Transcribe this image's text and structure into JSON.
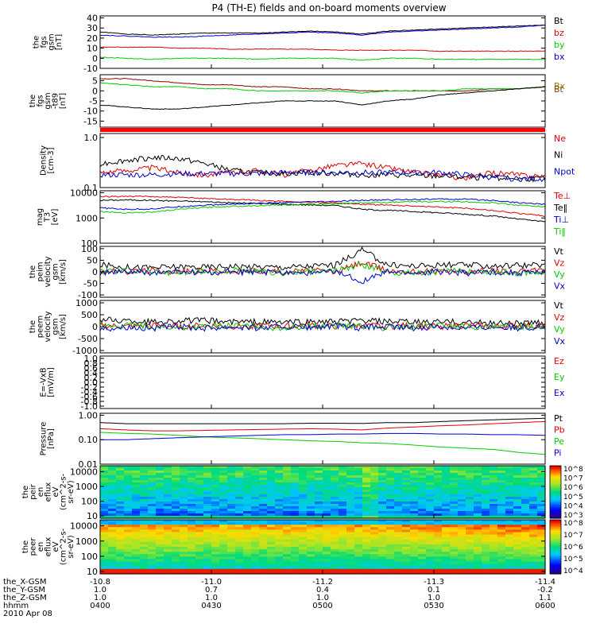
{
  "title": "P4 (TH-E) fields and on-board moments overview",
  "colors": {
    "black": "#000000",
    "red": "#e00000",
    "green": "#00cc00",
    "blue": "#0000cc",
    "darkred": "#8b0000",
    "olive": "#808000"
  },
  "chart_data": [
    {
      "type": "line",
      "id": "fgs_gsm",
      "ylabel": [
        "the",
        "fgs",
        "gsm",
        "[nT]"
      ],
      "yticks": [
        "40",
        "30",
        "20",
        "10",
        "0",
        "-10"
      ],
      "ylim": [
        -10,
        42
      ],
      "legend": [
        "Bt",
        "bz",
        "by",
        "bx"
      ],
      "series": [
        {
          "name": "Bt",
          "color": "#000000",
          "values": [
            26,
            24,
            23,
            24,
            25,
            25,
            25,
            26,
            27,
            26,
            24,
            27,
            28,
            29,
            30,
            31,
            32,
            33
          ]
        },
        {
          "name": "bz",
          "color": "#e00000",
          "values": [
            11,
            11,
            11,
            10,
            10,
            9,
            9,
            9,
            9,
            8,
            8,
            8,
            8,
            7,
            7,
            7,
            7,
            7
          ]
        },
        {
          "name": "by",
          "color": "#00cc00",
          "values": [
            1,
            0,
            -1,
            0,
            0,
            0,
            -1,
            0,
            0,
            0,
            -2,
            0,
            0,
            -1,
            -1,
            -1,
            -1,
            -1
          ]
        },
        {
          "name": "bx",
          "color": "#0000cc",
          "values": [
            23,
            22,
            21,
            21,
            22,
            23,
            24,
            25,
            26,
            25,
            23,
            26,
            27,
            28,
            29,
            30,
            31,
            33
          ]
        }
      ]
    },
    {
      "type": "line",
      "id": "fgs_gse",
      "ylabel": [
        "the",
        "fgs",
        "gsm",
        "-t89",
        "[nT]"
      ],
      "yticks": [
        "5",
        "0",
        "-5",
        "-10",
        "-15"
      ],
      "ylim": [
        -18,
        8
      ],
      "legend": [
        "Bx",
        "Bt"
      ],
      "series": [
        {
          "name": "Bx",
          "color": "#8b0000",
          "values": [
            6,
            6,
            5,
            4,
            3,
            3,
            2,
            2,
            1,
            1,
            0,
            0,
            0,
            0,
            0,
            1,
            1,
            2
          ]
        },
        {
          "name": "",
          "color": "#00cc00",
          "values": [
            4,
            3,
            2,
            2,
            1,
            1,
            0,
            0,
            0,
            0,
            -1,
            0,
            0,
            0,
            1,
            1,
            1,
            2
          ]
        },
        {
          "name": "Bt",
          "color": "#000000",
          "values": [
            -7,
            -8,
            -9,
            -9,
            -8,
            -7,
            -6,
            -5,
            -5,
            -5,
            -7,
            -5,
            -4,
            -2,
            -1,
            0,
            1,
            2
          ]
        }
      ]
    },
    {
      "type": "line",
      "id": "density",
      "scale": "log",
      "ylabel": [
        "Density",
        "[cm-3]"
      ],
      "yticks": [
        "1.0",
        "0.1"
      ],
      "ylim": [
        0.1,
        1.2
      ],
      "legend": [
        "Ne",
        "Ni",
        "Npot"
      ],
      "series": [
        {
          "name": "Ne",
          "color": "#e00000",
          "values": [
            0.2,
            0.22,
            0.25,
            0.2,
            0.18,
            0.2,
            0.22,
            0.18,
            0.22,
            0.28,
            0.3,
            0.25,
            0.2,
            0.18,
            0.15,
            0.2,
            0.18,
            0.17
          ]
        },
        {
          "name": "Ni",
          "color": "#000000",
          "values": [
            0.3,
            0.35,
            0.4,
            0.38,
            0.3,
            0.22,
            0.2,
            0.19,
            0.2,
            0.19,
            0.18,
            0.18,
            0.17,
            0.17,
            0.16,
            0.16,
            0.15,
            0.15
          ]
        },
        {
          "name": "Npot",
          "color": "#0000cc",
          "values": [
            0.18,
            0.18,
            0.18,
            0.19,
            0.19,
            0.19,
            0.19,
            0.2,
            0.2,
            0.2,
            0.2,
            0.2,
            0.2,
            0.2,
            0.18,
            0.16,
            0.15,
            0.15
          ]
        }
      ]
    },
    {
      "type": "line",
      "id": "temperature",
      "scale": "log",
      "ylabel": [
        "mag",
        "T3",
        "[eV]"
      ],
      "yticks": [
        "10000",
        "1000",
        "100"
      ],
      "ylim": [
        100,
        12000
      ],
      "legend": [
        "Te⊥",
        "Te‖",
        "Ti⊥",
        "Ti‖"
      ],
      "series": [
        {
          "name": "Te⊥",
          "color": "#e00000",
          "values": [
            7000,
            7200,
            7000,
            6500,
            6000,
            5500,
            5000,
            4500,
            4200,
            4000,
            3500,
            3200,
            3000,
            2700,
            2400,
            2000,
            1500,
            1200
          ]
        },
        {
          "name": "Te‖",
          "color": "#000000",
          "values": [
            5000,
            5200,
            5000,
            4700,
            4400,
            4000,
            3800,
            3500,
            3300,
            3100,
            2200,
            2000,
            1800,
            1600,
            1400,
            1200,
            900,
            700
          ]
        },
        {
          "name": "Ti⊥",
          "color": "#0000cc",
          "values": [
            2500,
            2200,
            2300,
            2800,
            3200,
            3500,
            3800,
            4000,
            4300,
            4500,
            5000,
            5200,
            5500,
            5600,
            5500,
            5000,
            4000,
            3500
          ]
        },
        {
          "name": "Ti‖",
          "color": "#00cc00",
          "values": [
            1800,
            1600,
            1700,
            2200,
            2600,
            2900,
            3100,
            3300,
            3500,
            3700,
            4000,
            4200,
            4400,
            4500,
            4400,
            4000,
            3200,
            2800
          ]
        }
      ]
    },
    {
      "type": "line",
      "id": "peim_velocity",
      "ylabel": [
        "the",
        "peim",
        "velocity",
        "gsm",
        "[km/s]"
      ],
      "yticks": [
        "100",
        "50",
        "0",
        "-50",
        "-100"
      ],
      "ylim": [
        -110,
        110
      ],
      "legend": [
        "Vt",
        "Vz",
        "Vy",
        "Vx"
      ],
      "series": [
        {
          "name": "Vt",
          "color": "#000000",
          "values": [
            30,
            20,
            18,
            22,
            20,
            25,
            22,
            20,
            25,
            30,
            95,
            30,
            25,
            30,
            28,
            25,
            30,
            28
          ]
        },
        {
          "name": "Vz",
          "color": "#e00000",
          "values": [
            5,
            0,
            5,
            0,
            5,
            0,
            5,
            0,
            5,
            0,
            40,
            5,
            0,
            5,
            0,
            5,
            0,
            5
          ]
        },
        {
          "name": "Vy",
          "color": "#00cc00",
          "values": [
            0,
            5,
            0,
            -5,
            0,
            5,
            0,
            -5,
            0,
            5,
            30,
            0,
            -5,
            0,
            5,
            0,
            -5,
            0
          ]
        },
        {
          "name": "Vx",
          "color": "#0000cc",
          "values": [
            -5,
            0,
            -5,
            0,
            -5,
            0,
            -5,
            0,
            -5,
            0,
            -40,
            0,
            -5,
            0,
            -5,
            0,
            -5,
            0
          ]
        }
      ]
    },
    {
      "type": "line",
      "id": "peem_velocity",
      "ylabel": [
        "the",
        "peem",
        "velocity",
        "gsm",
        "[km/s]"
      ],
      "yticks": [
        "1000",
        "500",
        "0",
        "-500",
        "-1000"
      ],
      "ylim": [
        -1100,
        1100
      ],
      "legend": [
        "Vt",
        "Vz",
        "Vy",
        "Vx"
      ],
      "series": [
        {
          "name": "Vt",
          "color": "#000000",
          "values": [
            300,
            250,
            200,
            250,
            250,
            200,
            200,
            180,
            200,
            200,
            250,
            200,
            180,
            200,
            180,
            150,
            150,
            150
          ]
        },
        {
          "name": "Vz",
          "color": "#e00000",
          "values": [
            50,
            0,
            50,
            0,
            50,
            0,
            50,
            0,
            50,
            0,
            50,
            0,
            50,
            0,
            50,
            0,
            50,
            0
          ]
        },
        {
          "name": "Vy",
          "color": "#00cc00",
          "values": [
            0,
            50,
            0,
            -50,
            0,
            50,
            0,
            -50,
            0,
            50,
            0,
            -50,
            0,
            50,
            0,
            -50,
            0,
            50
          ]
        },
        {
          "name": "Vx",
          "color": "#0000cc",
          "values": [
            -100,
            0,
            -80,
            0,
            -60,
            0,
            -50,
            0,
            -50,
            0,
            -50,
            0,
            -50,
            0,
            -50,
            0,
            -50,
            0
          ]
        }
      ]
    },
    {
      "type": "line",
      "id": "efield",
      "ylabel": [
        "E=-VxB",
        "[mV/m]"
      ],
      "yticks": [
        "1.0",
        "0.8",
        "0.6",
        "0.4",
        "0.2",
        "0.0",
        "-0.2",
        "-0.4",
        "-0.6",
        "-0.8",
        "-1.0"
      ],
      "ylim": [
        -1,
        1
      ],
      "legend": [
        "Ez",
        "Ey",
        "Ex"
      ],
      "series": []
    },
    {
      "type": "line",
      "id": "pressure",
      "scale": "log",
      "ylabel": [
        "Pressure",
        "[nPa]"
      ],
      "yticks": [
        "1.00",
        "0.10",
        "0.01"
      ],
      "ylim": [
        0.01,
        1.2
      ],
      "legend": [
        "Pt",
        "Pb",
        "Pe",
        "Pi"
      ],
      "series": [
        {
          "name": "Pt",
          "color": "#000000",
          "values": [
            0.5,
            0.45,
            0.45,
            0.45,
            0.45,
            0.45,
            0.45,
            0.45,
            0.47,
            0.47,
            0.46,
            0.5,
            0.5,
            0.55,
            0.6,
            0.65,
            0.7,
            0.75
          ]
        },
        {
          "name": "Pb",
          "color": "#e00000",
          "values": [
            0.28,
            0.25,
            0.23,
            0.23,
            0.24,
            0.25,
            0.26,
            0.27,
            0.28,
            0.27,
            0.25,
            0.3,
            0.33,
            0.37,
            0.4,
            0.45,
            0.5,
            0.55
          ]
        },
        {
          "name": "Pe",
          "color": "#00cc00",
          "values": [
            0.2,
            0.18,
            0.17,
            0.15,
            0.13,
            0.12,
            0.11,
            0.1,
            0.09,
            0.085,
            0.075,
            0.07,
            0.06,
            0.05,
            0.045,
            0.04,
            0.03,
            0.025
          ]
        },
        {
          "name": "Pi",
          "color": "#0000cc",
          "values": [
            0.1,
            0.1,
            0.11,
            0.12,
            0.13,
            0.14,
            0.15,
            0.16,
            0.16,
            0.17,
            0.17,
            0.18,
            0.18,
            0.17,
            0.17,
            0.16,
            0.16,
            0.15
          ]
        }
      ]
    },
    {
      "type": "heatmap",
      "id": "peir_spectrogram",
      "scale": "log",
      "ylabel": [
        "the",
        "peir",
        "en",
        "eflux",
        "eV",
        "(cm^2-s-",
        "sr-eV)"
      ],
      "yticks": [
        "10000",
        "1000",
        "100",
        "10"
      ],
      "ylim": [
        7,
        25000
      ],
      "colorbar": {
        "ticks": [
          "10^8",
          "10^7",
          "10^6",
          "10^5",
          "10^4",
          "10^3"
        ]
      }
    },
    {
      "type": "heatmap",
      "id": "peer_spectrogram",
      "scale": "log",
      "ylabel": [
        "the",
        "peer",
        "en",
        "eflux",
        "eV",
        "(cm^2-s-",
        "sr-eV)"
      ],
      "yticks": [
        "10000",
        "1000",
        "100",
        "10"
      ],
      "ylim": [
        7,
        25000
      ],
      "colorbar": {
        "ticks": [
          "10^8",
          "10^7",
          "10^6",
          "10^5",
          "10^4"
        ]
      }
    }
  ],
  "x_axis": {
    "rows": [
      {
        "label": "the_X-GSM",
        "values": [
          "-10.8",
          "-11.0",
          "-11.2",
          "-11.3",
          "-11.4"
        ]
      },
      {
        "label": "the_Y-GSM",
        "values": [
          "1.0",
          "0.7",
          "0.4",
          "0.1",
          "-0.2"
        ]
      },
      {
        "label": "the_Z-GSM",
        "values": [
          "1.0",
          "1.0",
          "1.0",
          "1.0",
          "1.1"
        ]
      },
      {
        "label": "hhmm",
        "values": [
          "0400",
          "0430",
          "0500",
          "0530",
          "0600"
        ]
      }
    ],
    "date": "2010 Apr 08"
  }
}
